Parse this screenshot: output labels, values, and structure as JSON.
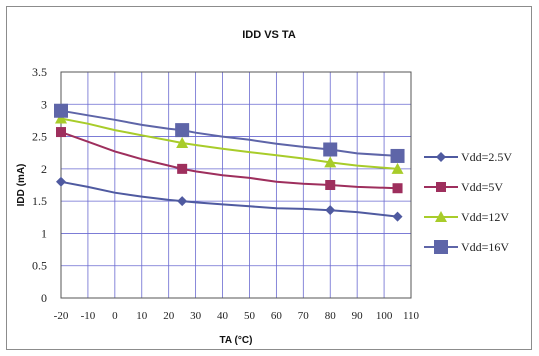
{
  "chart_data": {
    "type": "line",
    "title": "IDD VS TA",
    "xlabel": "TA (°C)",
    "ylabel": "IDD (mA)",
    "xlim": [
      -20,
      110
    ],
    "ylim": [
      0,
      3.5
    ],
    "x_ticks": [
      -20,
      -10,
      0,
      10,
      20,
      30,
      40,
      50,
      60,
      70,
      80,
      90,
      100,
      110
    ],
    "y_ticks": [
      0,
      0.5,
      1,
      1.5,
      2,
      2.5,
      3,
      3.5
    ],
    "grid": true,
    "legend_position": "right",
    "series": [
      {
        "name": "Vdd=2.5V",
        "color": "#4f5aa0",
        "marker": "diamond",
        "x": [
          -20,
          -10,
          0,
          10,
          20,
          25,
          30,
          40,
          50,
          60,
          70,
          80,
          90,
          105
        ],
        "y": [
          1.8,
          1.72,
          1.63,
          1.57,
          1.52,
          1.5,
          1.48,
          1.45,
          1.42,
          1.39,
          1.38,
          1.36,
          1.33,
          1.26
        ],
        "marker_x": [
          -20,
          25,
          80,
          105
        ],
        "marker_y": [
          1.8,
          1.5,
          1.36,
          1.26
        ]
      },
      {
        "name": "Vdd=5V",
        "color": "#9e2f5d",
        "marker": "square",
        "x": [
          -20,
          -10,
          0,
          10,
          20,
          25,
          30,
          40,
          50,
          60,
          70,
          80,
          90,
          105
        ],
        "y": [
          2.57,
          2.42,
          2.27,
          2.15,
          2.05,
          2.0,
          1.96,
          1.9,
          1.86,
          1.8,
          1.77,
          1.75,
          1.72,
          1.7
        ],
        "marker_x": [
          -20,
          25,
          80,
          105
        ],
        "marker_y": [
          2.57,
          2.0,
          1.75,
          1.7
        ]
      },
      {
        "name": "Vdd=12V",
        "color": "#a8cc2a",
        "marker": "triangle",
        "x": [
          -20,
          -10,
          0,
          10,
          20,
          25,
          30,
          40,
          50,
          60,
          70,
          80,
          90,
          105
        ],
        "y": [
          2.78,
          2.7,
          2.6,
          2.52,
          2.44,
          2.4,
          2.37,
          2.31,
          2.26,
          2.21,
          2.16,
          2.1,
          2.05,
          2.0
        ],
        "marker_x": [
          -20,
          25,
          80,
          105
        ],
        "marker_y": [
          2.78,
          2.4,
          2.1,
          2.0
        ]
      },
      {
        "name": "Vdd=16V",
        "color": "#5e65a8",
        "marker": "square-large",
        "x": [
          -20,
          -10,
          0,
          10,
          20,
          25,
          30,
          40,
          50,
          60,
          70,
          80,
          90,
          105
        ],
        "y": [
          2.9,
          2.83,
          2.76,
          2.68,
          2.62,
          2.6,
          2.56,
          2.5,
          2.45,
          2.39,
          2.34,
          2.3,
          2.24,
          2.2
        ],
        "marker_x": [
          -20,
          25,
          80,
          105
        ],
        "marker_y": [
          2.9,
          2.6,
          2.3,
          2.2
        ]
      }
    ]
  }
}
